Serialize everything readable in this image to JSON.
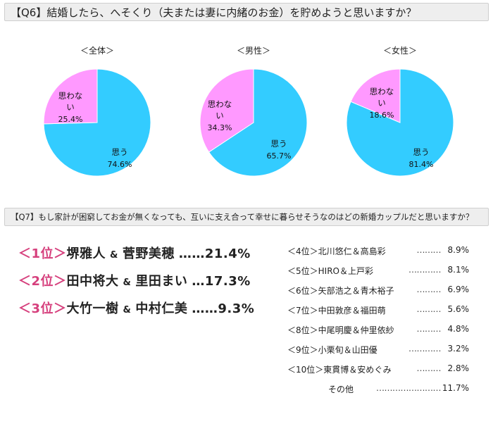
{
  "q6": {
    "header": "【Q6】結婚したら、へそくり（夫または妻に内緒のお金）を貯めようと思いますか？"
  },
  "chart_data": [
    {
      "type": "pie",
      "title": "＜全体＞",
      "slices": [
        {
          "label": "思う",
          "value": 74.6,
          "value_label": "74.6%",
          "color": "#33ccff"
        },
        {
          "label": "思わない",
          "value": 25.4,
          "value_label": "25.4%",
          "color": "#ff99ff"
        }
      ]
    },
    {
      "type": "pie",
      "title": "＜男性＞",
      "slices": [
        {
          "label": "思う",
          "value": 65.7,
          "value_label": "65.7%",
          "color": "#33ccff"
        },
        {
          "label": "思わない",
          "value": 34.3,
          "value_label": "34.3%",
          "color": "#ff99ff"
        }
      ]
    },
    {
      "type": "pie",
      "title": "＜女性＞",
      "slices": [
        {
          "label": "思う",
          "value": 81.4,
          "value_label": "81.4%",
          "color": "#33ccff"
        },
        {
          "label": "思わない",
          "value": 18.6,
          "value_label": "18.6%",
          "color": "#ff99ff"
        }
      ]
    }
  ],
  "q7": {
    "header": "【Q7】もし家計が困窮してお金が無くなっても、互いに支え合って幸せに暮らせそうなのはどの新婚カップルだと思いますか？",
    "accent_color": "#d6407d",
    "top3": [
      {
        "rank": "＜1位＞",
        "name1": "堺雅人",
        "amp": "&",
        "name2": "菅野美穂",
        "dots": "……",
        "pct": "21.4%"
      },
      {
        "rank": "＜2位＞",
        "name1": "田中将大",
        "amp": "&",
        "name2": "里田まい",
        "dots": "…",
        "pct": "17.3%"
      },
      {
        "rank": "＜3位＞",
        "name1": "大竹一樹",
        "amp": "&",
        "name2": "中村仁美",
        "dots": "……",
        "pct": "9.3%"
      }
    ],
    "others": [
      {
        "label": "＜4位＞北川悠仁＆高島彩",
        "dots": "………",
        "pct": "8.9%"
      },
      {
        "label": "＜5位＞HIRO＆上戸彩",
        "dots": "…………",
        "pct": "8.1%"
      },
      {
        "label": "＜6位＞矢部浩之＆青木裕子",
        "dots": "………",
        "pct": "6.9%"
      },
      {
        "label": "＜7位＞中田敦彦＆福田萌",
        "dots": "………",
        "pct": "5.6%"
      },
      {
        "label": "＜8位＞中尾明慶＆仲里依紗",
        "dots": "………",
        "pct": "4.8%"
      },
      {
        "label": "＜9位＞小栗旬＆山田優",
        "dots": "…………",
        "pct": "3.2%"
      },
      {
        "label": "＜10位＞東貫博＆安めぐみ",
        "dots": "………",
        "pct": "2.8%"
      },
      {
        "label": "その他",
        "dots": "……………………",
        "pct": "11.7%"
      }
    ]
  }
}
